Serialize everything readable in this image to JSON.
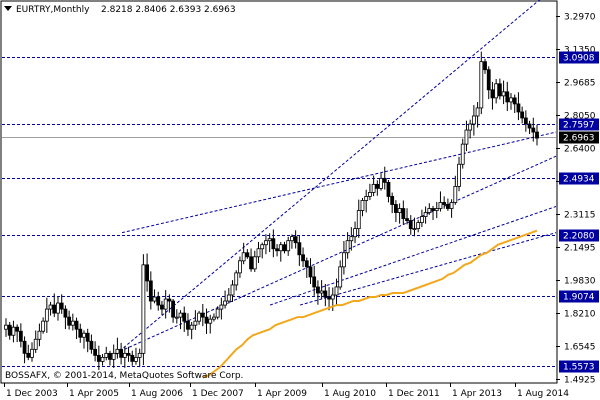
{
  "header": {
    "symbol_timeframe": "EURTRY,Monthly",
    "ohlc": "2.8218 2.8406 2.6393 2.6963"
  },
  "footer": {
    "copyright": "BOSSAFX, © 2001-2014, MetaQuotes Software Corp."
  },
  "colors": {
    "candle": "#000000",
    "ma": "#f2a81d",
    "level_line": "#0000a0",
    "level_box": "#0000a0",
    "trend": "#0000a0",
    "current_price_line": "#a0a0a0",
    "current_price_box": "#000000"
  },
  "chart_data": {
    "type": "candlestick",
    "title": "EURTRY,Monthly",
    "ylim": [
      1.4925,
      3.38
    ],
    "x_tick_labels": [
      "1 Dec 2003",
      "1 Apr 2005",
      "1 Aug 2006",
      "1 Dec 2007",
      "1 Apr 2009",
      "1 Aug 2010",
      "1 Dec 2011",
      "1 Apr 2013",
      "1 Aug 2014"
    ],
    "y_tick_labels": [
      "3.2970",
      "3.1350",
      "2.9685",
      "2.8050",
      "2.6400",
      "2.4765",
      "2.3115",
      "2.1495",
      "1.9830",
      "1.8210",
      "1.6545",
      "1.4925"
    ],
    "y_ticks": [
      3.297,
      3.135,
      2.9685,
      2.805,
      2.64,
      2.4765,
      2.3115,
      2.1495,
      1.983,
      1.821,
      1.6545,
      1.4925
    ],
    "horizontal_levels": [
      3.0908,
      2.7597,
      2.4934,
      2.208,
      1.9074,
      1.5573
    ],
    "horizontal_level_labels": [
      "3.0908",
      "2.7597",
      "2.4934",
      "2.2080",
      "1.9074",
      "1.5573"
    ],
    "current_price": 2.6963,
    "current_price_label": "2.6963",
    "series": [
      {
        "type": "ohlc",
        "closes": [
          1.76,
          1.71,
          1.75,
          1.73,
          1.68,
          1.62,
          1.6,
          1.64,
          1.69,
          1.73,
          1.78,
          1.84,
          1.86,
          1.82,
          1.87,
          1.84,
          1.8,
          1.76,
          1.78,
          1.74,
          1.7,
          1.72,
          1.68,
          1.64,
          1.61,
          1.58,
          1.6,
          1.62,
          1.59,
          1.62,
          1.64,
          1.6,
          1.62,
          1.61,
          1.58,
          1.6,
          1.62,
          2.06,
          1.98,
          1.88,
          1.9,
          1.86,
          1.84,
          1.89,
          1.88,
          1.8,
          1.8,
          1.82,
          1.78,
          1.74,
          1.76,
          1.78,
          1.82,
          1.8,
          1.77,
          1.79,
          1.8,
          1.84,
          1.86,
          1.88,
          1.91,
          1.96,
          2.02,
          2.08,
          2.12,
          2.1,
          2.04,
          2.1,
          2.14,
          2.16,
          2.18,
          2.19,
          2.14,
          2.13,
          2.16,
          2.13,
          2.18,
          2.2,
          2.17,
          2.11,
          2.08,
          2.05,
          2.0,
          1.95,
          1.92,
          1.93,
          1.9,
          1.89,
          1.91,
          1.95,
          2.05,
          2.12,
          2.18,
          2.2,
          2.24,
          2.33,
          2.38,
          2.4,
          2.42,
          2.46,
          2.44,
          2.49,
          2.47,
          2.4,
          2.36,
          2.32,
          2.34,
          2.29,
          2.28,
          2.24,
          2.24,
          2.27,
          2.3,
          2.32,
          2.34,
          2.33,
          2.34,
          2.37,
          2.36,
          2.34,
          2.37,
          2.45,
          2.56,
          2.66,
          2.73,
          2.76,
          2.8,
          2.84,
          3.07,
          3.03,
          2.93,
          2.89,
          2.96,
          2.9,
          2.92,
          2.87,
          2.89,
          2.86,
          2.82,
          2.79,
          2.76,
          2.74,
          2.72,
          2.69
        ]
      },
      {
        "type": "line",
        "name": "",
        "values": [
          1.5,
          1.51,
          1.53,
          1.55,
          1.58,
          1.61,
          1.64,
          1.66,
          1.69,
          1.71,
          1.72,
          1.73,
          1.74,
          1.76,
          1.77,
          1.78,
          1.79,
          1.8,
          1.8,
          1.81,
          1.82,
          1.83,
          1.84,
          1.85,
          1.86,
          1.86,
          1.87,
          1.88,
          1.88,
          1.89,
          1.9,
          1.9,
          1.91,
          1.91,
          1.92,
          1.92,
          1.92,
          1.93,
          1.94,
          1.95,
          1.96,
          1.97,
          1.98,
          1.99,
          2.01,
          2.02,
          2.04,
          2.06,
          2.07,
          2.09,
          2.11,
          2.12,
          2.14,
          2.16,
          2.17,
          2.18,
          2.19,
          2.2,
          2.21,
          2.22,
          2.23
        ]
      }
    ]
  }
}
